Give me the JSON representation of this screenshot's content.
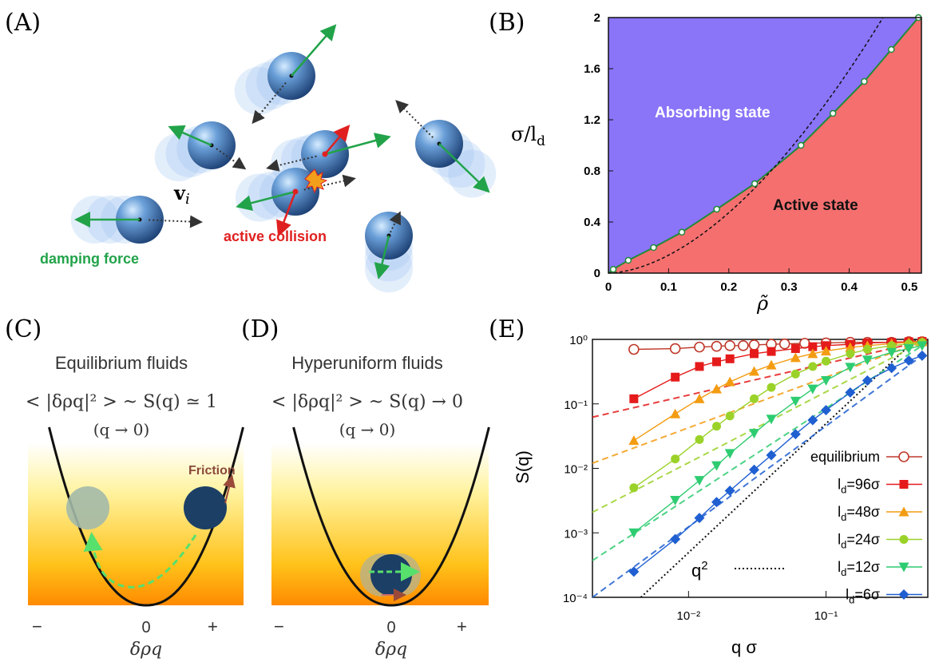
{
  "labels": {
    "A": "(A)",
    "B": "(B)",
    "C": "(C)",
    "D": "(D)",
    "E": "(E)"
  },
  "colors": {
    "blue": "#4f88c6",
    "absorbing": "#8a74f8",
    "active": "#f56f6f",
    "green": "#22a34a",
    "red": "#e02020",
    "eqRed": "#c0392b"
  },
  "panelA": {
    "velocity_label": "v",
    "velocity_sub": "i",
    "collision_label": "active collision",
    "damping_label": "damping force"
  },
  "panelB": {
    "absorbing_label": "Absorbing state",
    "active_label": "Active state",
    "ylabel": "σ/l",
    "ylabel_sub": "d",
    "xlabel": "ρ̃",
    "xticks": [
      "0",
      "0.1",
      "0.2",
      "0.3",
      "0.4",
      "0.5"
    ],
    "yticks": [
      "0",
      "0.4",
      "0.8",
      "1.2",
      "1.6",
      "2"
    ]
  },
  "panelC": {
    "title": "Equilibrium fluids",
    "formula": "< |δρq|² > ~ S(q) ≃ 1",
    "limit": "(q → 0)",
    "friction": "Friction",
    "minus": "−",
    "zero": "0",
    "plus": "+",
    "xlabel": "δρq"
  },
  "panelD": {
    "title": "Hyperuniform fluids",
    "formula": "< |δρq|² > ~ S(q) → 0",
    "limit": "(q → 0)",
    "minus": "−",
    "zero": "0",
    "plus": "+",
    "xlabel": "δρq"
  },
  "chart_data": [
    {
      "type": "area",
      "panel": "B",
      "xlabel": "ρ̃",
      "ylabel": "σ/ld",
      "xlim": [
        0,
        0.52
      ],
      "ylim": [
        0,
        2
      ],
      "regions": [
        "Absorbing state",
        "Active state"
      ],
      "boundary": {
        "x": [
          0.008,
          0.033,
          0.075,
          0.122,
          0.18,
          0.243,
          0.32,
          0.373,
          0.425,
          0.47,
          0.515
        ],
        "y": [
          0.03,
          0.1,
          0.2,
          0.32,
          0.5,
          0.7,
          1.0,
          1.25,
          1.5,
          1.75,
          2.0
        ]
      }
    },
    {
      "type": "line",
      "panel": "E",
      "xlabel": "q σ",
      "ylabel": "S(q)",
      "xscale": "log",
      "yscale": "log",
      "xlim": [
        0.002,
        0.55
      ],
      "ylim": [
        0.0001,
        1
      ],
      "yticks": [
        "10⁰",
        "10⁻¹",
        "10⁻²",
        "10⁻³",
        "10⁻⁴"
      ],
      "xticks": [
        "10⁻²",
        "10⁻¹"
      ],
      "legend_position": "bottom-right",
      "series": [
        {
          "name": "equilibrium",
          "color": "#c0392b",
          "marker": "open-circle",
          "x": [
            0.004,
            0.008,
            0.012,
            0.016,
            0.02,
            0.025,
            0.03,
            0.04,
            0.05,
            0.07,
            0.1,
            0.15,
            0.2,
            0.3,
            0.4,
            0.5
          ],
          "y": [
            0.7,
            0.72,
            0.76,
            0.78,
            0.8,
            0.8,
            0.82,
            0.84,
            0.85,
            0.87,
            0.88,
            0.9,
            0.9,
            0.9,
            0.92,
            0.92
          ]
        },
        {
          "name": "l_d=96σ",
          "color": "#e51b1b",
          "marker": "square",
          "x": [
            0.004,
            0.008,
            0.012,
            0.016,
            0.02,
            0.03,
            0.04,
            0.06,
            0.08,
            0.1,
            0.15,
            0.2,
            0.3,
            0.4,
            0.5
          ],
          "y": [
            0.12,
            0.26,
            0.38,
            0.45,
            0.5,
            0.6,
            0.65,
            0.72,
            0.77,
            0.8,
            0.84,
            0.88,
            0.9,
            0.92,
            0.93
          ]
        },
        {
          "name": "l_d=48σ",
          "color": "#f39c12",
          "marker": "triangle-up",
          "x": [
            0.004,
            0.008,
            0.012,
            0.016,
            0.02,
            0.03,
            0.04,
            0.06,
            0.08,
            0.1,
            0.15,
            0.2,
            0.3,
            0.4,
            0.5
          ],
          "y": [
            0.027,
            0.07,
            0.12,
            0.17,
            0.22,
            0.32,
            0.4,
            0.52,
            0.6,
            0.66,
            0.75,
            0.8,
            0.86,
            0.9,
            0.92
          ]
        },
        {
          "name": "l_d=24σ",
          "color": "#9bd22a",
          "marker": "circle",
          "x": [
            0.004,
            0.008,
            0.012,
            0.016,
            0.02,
            0.03,
            0.04,
            0.06,
            0.08,
            0.1,
            0.15,
            0.2,
            0.3,
            0.4,
            0.5
          ],
          "y": [
            0.005,
            0.014,
            0.028,
            0.045,
            0.065,
            0.12,
            0.18,
            0.29,
            0.38,
            0.46,
            0.6,
            0.7,
            0.8,
            0.85,
            0.9
          ]
        },
        {
          "name": "l_d=12σ",
          "color": "#2ecc71",
          "marker": "triangle-down",
          "x": [
            0.004,
            0.008,
            0.012,
            0.016,
            0.02,
            0.03,
            0.04,
            0.06,
            0.08,
            0.1,
            0.15,
            0.2,
            0.3,
            0.4,
            0.5
          ],
          "y": [
            0.001,
            0.0032,
            0.0065,
            0.011,
            0.017,
            0.035,
            0.058,
            0.11,
            0.17,
            0.23,
            0.37,
            0.48,
            0.63,
            0.72,
            0.8
          ]
        },
        {
          "name": "l_d=6σ",
          "color": "#1f5fd1",
          "marker": "diamond",
          "x": [
            0.004,
            0.008,
            0.012,
            0.016,
            0.02,
            0.03,
            0.04,
            0.06,
            0.08,
            0.1,
            0.15,
            0.2,
            0.3,
            0.4,
            0.5
          ],
          "y": [
            0.00025,
            0.0008,
            0.0017,
            0.003,
            0.0045,
            0.0095,
            0.016,
            0.034,
            0.056,
            0.08,
            0.15,
            0.23,
            0.36,
            0.47,
            0.56
          ]
        }
      ],
      "reference": {
        "name": "q²",
        "style": "dotted"
      }
    }
  ],
  "panelE": {
    "ylabel": "S(q)",
    "xlabel": "q σ",
    "legend": [
      {
        "label": "equilibrium",
        "color": "#c0392b",
        "marker": "open-circle"
      },
      {
        "label": "l_d=96σ",
        "prefix": "l",
        "sub": "d",
        "rest": "=96σ",
        "color": "#e51b1b",
        "marker": "square"
      },
      {
        "label": "l_d=48σ",
        "prefix": "l",
        "sub": "d",
        "rest": "=48σ",
        "color": "#f39c12",
        "marker": "triangle-up"
      },
      {
        "label": "l_d=24σ",
        "prefix": "l",
        "sub": "d",
        "rest": "=24σ",
        "color": "#9bd22a",
        "marker": "circle"
      },
      {
        "label": "l_d=12σ",
        "prefix": "l",
        "sub": "d",
        "rest": "=12σ",
        "color": "#2ecc71",
        "marker": "triangle-down"
      },
      {
        "label": "l_d=6σ",
        "prefix": "l",
        "sub": "d",
        "rest": "=6σ",
        "color": "#1f5fd1",
        "marker": "diamond"
      }
    ],
    "q2_label": "q",
    "q2_sup": "2"
  }
}
